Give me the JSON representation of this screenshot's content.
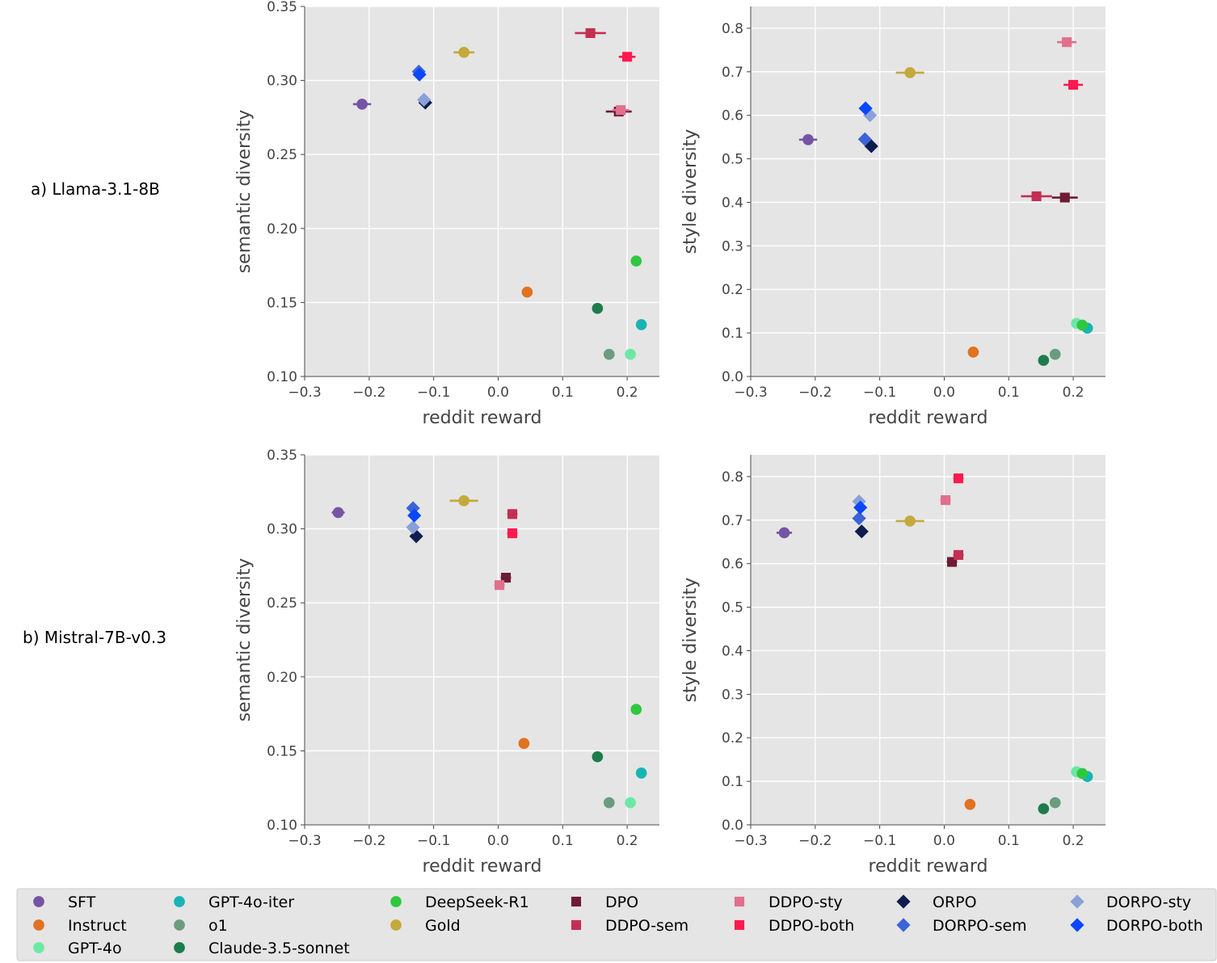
{
  "figure": {
    "row_labels": [
      "a) Llama-3.1-8B",
      "b) Mistral-7B-v0.3"
    ],
    "xlabel": "reddit reward",
    "ylabel_semantic": "semantic diversity",
    "ylabel_style": "style diversity"
  },
  "legend": [
    {
      "name": "SFT",
      "color": "#7554a6",
      "marker": "circle"
    },
    {
      "name": "GPT-4o-iter",
      "color": "#18b4b4",
      "marker": "circle"
    },
    {
      "name": "DeepSeek-R1",
      "color": "#2ec840",
      "marker": "circle"
    },
    {
      "name": "DPO",
      "color": "#6e1b35",
      "marker": "square"
    },
    {
      "name": "DDPO-sty",
      "color": "#e0708c",
      "marker": "square"
    },
    {
      "name": "ORPO",
      "color": "#0f1c4e",
      "marker": "diamond"
    },
    {
      "name": "DORPO-sty",
      "color": "#8aa1d8",
      "marker": "diamond"
    },
    {
      "name": "Instruct",
      "color": "#e07220",
      "marker": "circle"
    },
    {
      "name": "o1",
      "color": "#6a9c7e",
      "marker": "circle"
    },
    {
      "name": "Gold",
      "color": "#c4a93c",
      "marker": "circle"
    },
    {
      "name": "DDPO-sem",
      "color": "#c42e52",
      "marker": "square"
    },
    {
      "name": "DDPO-both",
      "color": "#ff1a4f",
      "marker": "square"
    },
    {
      "name": "DORPO-sem",
      "color": "#3c63d8",
      "marker": "diamond"
    },
    {
      "name": "DORPO-both",
      "color": "#0a46ff",
      "marker": "diamond"
    },
    {
      "name": "GPT-4o",
      "color": "#6de8a4",
      "marker": "circle"
    },
    {
      "name": "Claude-3.5-sonnet",
      "color": "#1d7c4c",
      "marker": "circle"
    }
  ],
  "chart_data": [
    {
      "type": "scatter",
      "panel": "a-semantic",
      "xlabel": "reddit reward",
      "ylabel": "semantic diversity",
      "xlim": [
        -0.3,
        0.25
      ],
      "ylim": [
        0.1,
        0.35
      ],
      "xticks": [
        "−0.3",
        "−0.2",
        "−0.1",
        "0.0",
        "0.1",
        "0.2"
      ],
      "yticks": [
        "0.10",
        "0.15",
        "0.20",
        "0.25",
        "0.30",
        "0.35"
      ],
      "grid": true,
      "points": [
        {
          "series": "SFT",
          "x": -0.211,
          "y": 0.284,
          "xerr": 0.014
        },
        {
          "series": "Instruct",
          "x": 0.045,
          "y": 0.157
        },
        {
          "series": "GPT-4o",
          "x": 0.205,
          "y": 0.115
        },
        {
          "series": "GPT-4o-iter",
          "x": 0.222,
          "y": 0.135
        },
        {
          "series": "o1",
          "x": 0.172,
          "y": 0.115
        },
        {
          "series": "Claude-3.5-sonnet",
          "x": 0.154,
          "y": 0.146
        },
        {
          "series": "DeepSeek-R1",
          "x": 0.214,
          "y": 0.178
        },
        {
          "series": "Gold",
          "x": -0.053,
          "y": 0.319,
          "xerr": 0.016
        },
        {
          "series": "DPO",
          "x": 0.187,
          "y": 0.279,
          "xerr": 0.02
        },
        {
          "series": "DDPO-sem",
          "x": 0.143,
          "y": 0.332,
          "xerr": 0.024
        },
        {
          "series": "DDPO-sty",
          "x": 0.19,
          "y": 0.28,
          "xerr": 0.013
        },
        {
          "series": "DDPO-both",
          "x": 0.2,
          "y": 0.316,
          "xerr": 0.013
        },
        {
          "series": "ORPO",
          "x": -0.113,
          "y": 0.285
        },
        {
          "series": "DORPO-sem",
          "x": -0.123,
          "y": 0.306
        },
        {
          "series": "DORPO-sty",
          "x": -0.115,
          "y": 0.287
        },
        {
          "series": "DORPO-both",
          "x": -0.122,
          "y": 0.304
        }
      ]
    },
    {
      "type": "scatter",
      "panel": "a-style",
      "xlabel": "reddit reward",
      "ylabel": "style diversity",
      "xlim": [
        -0.3,
        0.25
      ],
      "ylim": [
        0.0,
        0.85
      ],
      "xticks": [
        "−0.3",
        "−0.2",
        "−0.1",
        "0.0",
        "0.1",
        "0.2"
      ],
      "yticks": [
        "0.0",
        "0.1",
        "0.2",
        "0.3",
        "0.4",
        "0.5",
        "0.6",
        "0.7",
        "0.8"
      ],
      "grid": true,
      "points": [
        {
          "series": "SFT",
          "x": -0.211,
          "y": 0.544,
          "xerr": 0.014
        },
        {
          "series": "Instruct",
          "x": 0.045,
          "y": 0.056
        },
        {
          "series": "GPT-4o",
          "x": 0.205,
          "y": 0.122
        },
        {
          "series": "GPT-4o-iter",
          "x": 0.222,
          "y": 0.111
        },
        {
          "series": "o1",
          "x": 0.172,
          "y": 0.051
        },
        {
          "series": "Claude-3.5-sonnet",
          "x": 0.154,
          "y": 0.037
        },
        {
          "series": "DeepSeek-R1",
          "x": 0.214,
          "y": 0.118
        },
        {
          "series": "Gold",
          "x": -0.053,
          "y": 0.698,
          "xerr": 0.022
        },
        {
          "series": "DPO",
          "x": 0.187,
          "y": 0.411,
          "xerr": 0.02
        },
        {
          "series": "DDPO-sem",
          "x": 0.143,
          "y": 0.414,
          "xerr": 0.024
        },
        {
          "series": "DDPO-sty",
          "x": 0.19,
          "y": 0.768,
          "xerr": 0.015
        },
        {
          "series": "DDPO-both",
          "x": 0.2,
          "y": 0.67,
          "xerr": 0.015
        },
        {
          "series": "ORPO",
          "x": -0.113,
          "y": 0.529
        },
        {
          "series": "DORPO-sem",
          "x": -0.123,
          "y": 0.545
        },
        {
          "series": "DORPO-sty",
          "x": -0.115,
          "y": 0.6
        },
        {
          "series": "DORPO-both",
          "x": -0.122,
          "y": 0.616
        }
      ]
    },
    {
      "type": "scatter",
      "panel": "b-semantic",
      "xlabel": "reddit reward",
      "ylabel": "semantic diversity",
      "xlim": [
        -0.3,
        0.25
      ],
      "ylim": [
        0.1,
        0.35
      ],
      "xticks": [
        "−0.3",
        "−0.2",
        "−0.1",
        "0.0",
        "0.1",
        "0.2"
      ],
      "yticks": [
        "0.10",
        "0.15",
        "0.20",
        "0.25",
        "0.30",
        "0.35"
      ],
      "grid": true,
      "points": [
        {
          "series": "SFT",
          "x": -0.248,
          "y": 0.311,
          "xerr": 0.01
        },
        {
          "series": "Instruct",
          "x": 0.04,
          "y": 0.155
        },
        {
          "series": "GPT-4o",
          "x": 0.205,
          "y": 0.115
        },
        {
          "series": "GPT-4o-iter",
          "x": 0.222,
          "y": 0.135
        },
        {
          "series": "o1",
          "x": 0.172,
          "y": 0.115
        },
        {
          "series": "Claude-3.5-sonnet",
          "x": 0.154,
          "y": 0.146
        },
        {
          "series": "DeepSeek-R1",
          "x": 0.214,
          "y": 0.178
        },
        {
          "series": "Gold",
          "x": -0.053,
          "y": 0.319,
          "xerr": 0.022
        },
        {
          "series": "DPO",
          "x": 0.012,
          "y": 0.267,
          "xerr": 0.008
        },
        {
          "series": "DDPO-sem",
          "x": 0.022,
          "y": 0.31,
          "xerr": 0.008
        },
        {
          "series": "DDPO-sty",
          "x": 0.002,
          "y": 0.262,
          "xerr": 0.008
        },
        {
          "series": "DDPO-both",
          "x": 0.022,
          "y": 0.297,
          "xerr": 0.008
        },
        {
          "series": "ORPO",
          "x": -0.127,
          "y": 0.295
        },
        {
          "series": "DORPO-sem",
          "x": -0.132,
          "y": 0.314
        },
        {
          "series": "DORPO-sty",
          "x": -0.132,
          "y": 0.301
        },
        {
          "series": "DORPO-both",
          "x": -0.13,
          "y": 0.309
        }
      ]
    },
    {
      "type": "scatter",
      "panel": "b-style",
      "xlabel": "reddit reward",
      "ylabel": "style diversity",
      "xlim": [
        -0.3,
        0.25
      ],
      "ylim": [
        0.0,
        0.85
      ],
      "xticks": [
        "−0.3",
        "−0.2",
        "−0.1",
        "0.0",
        "0.1",
        "0.2"
      ],
      "yticks": [
        "0.0",
        "0.1",
        "0.2",
        "0.3",
        "0.4",
        "0.5",
        "0.6",
        "0.7",
        "0.8"
      ],
      "grid": true,
      "points": [
        {
          "series": "SFT",
          "x": -0.248,
          "y": 0.671,
          "xerr": 0.012
        },
        {
          "series": "Instruct",
          "x": 0.04,
          "y": 0.047
        },
        {
          "series": "GPT-4o",
          "x": 0.205,
          "y": 0.122
        },
        {
          "series": "GPT-4o-iter",
          "x": 0.222,
          "y": 0.111
        },
        {
          "series": "o1",
          "x": 0.172,
          "y": 0.051
        },
        {
          "series": "Claude-3.5-sonnet",
          "x": 0.154,
          "y": 0.037
        },
        {
          "series": "DeepSeek-R1",
          "x": 0.214,
          "y": 0.118
        },
        {
          "series": "Gold",
          "x": -0.053,
          "y": 0.698,
          "xerr": 0.022
        },
        {
          "series": "DPO",
          "x": 0.012,
          "y": 0.604,
          "xerr": 0.008
        },
        {
          "series": "DDPO-sem",
          "x": 0.022,
          "y": 0.62,
          "xerr": 0.008
        },
        {
          "series": "DDPO-sty",
          "x": 0.002,
          "y": 0.746,
          "xerr": 0.008
        },
        {
          "series": "DDPO-both",
          "x": 0.022,
          "y": 0.796,
          "xerr": 0.008
        },
        {
          "series": "ORPO",
          "x": -0.128,
          "y": 0.674
        },
        {
          "series": "DORPO-sem",
          "x": -0.132,
          "y": 0.704
        },
        {
          "series": "DORPO-sty",
          "x": -0.132,
          "y": 0.743
        },
        {
          "series": "DORPO-both",
          "x": -0.13,
          "y": 0.729
        }
      ]
    }
  ]
}
